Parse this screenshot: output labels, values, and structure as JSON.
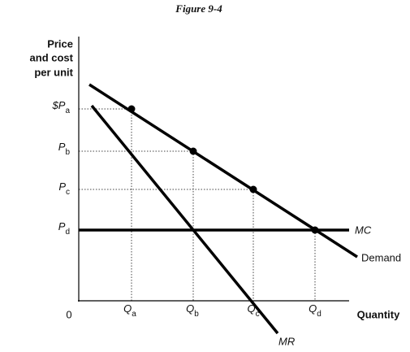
{
  "header": {
    "title": "Figure 9-4"
  },
  "y_axis": {
    "label": [
      "Price",
      "and cost",
      "per unit"
    ]
  },
  "x_axis": {
    "label": "Quantity",
    "origin": "0"
  },
  "prices": [
    {
      "main": "$P",
      "sub": "a"
    },
    {
      "main": "P",
      "sub": "b"
    },
    {
      "main": "P",
      "sub": "c"
    },
    {
      "main": "P",
      "sub": "d"
    }
  ],
  "quantities": [
    {
      "main": "Q",
      "sub": "a"
    },
    {
      "main": "Q",
      "sub": "b"
    },
    {
      "main": "Q",
      "sub": "c"
    },
    {
      "main": "Q",
      "sub": "d"
    }
  ],
  "curves": {
    "mc": "MC",
    "demand": "Demand",
    "mr": "MR"
  }
}
